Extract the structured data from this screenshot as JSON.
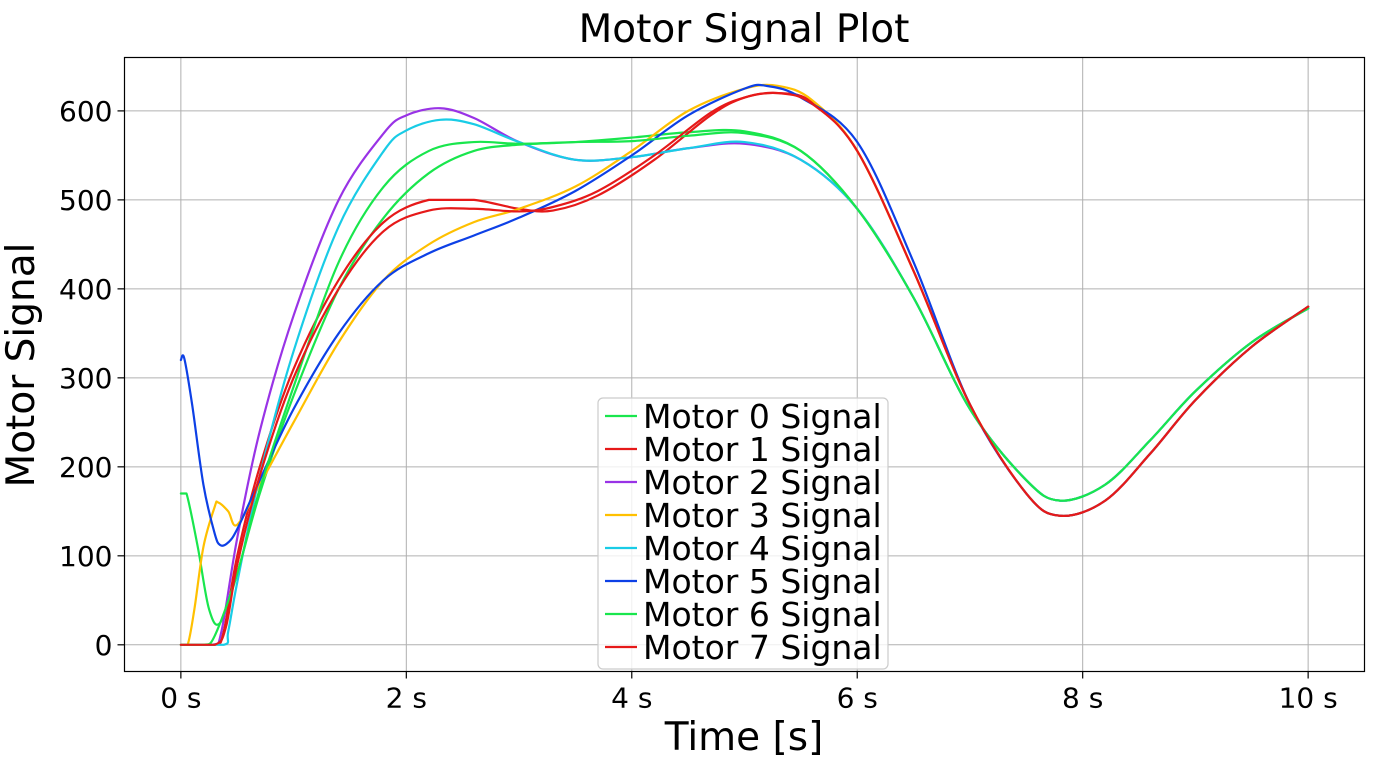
{
  "chart_data": {
    "type": "line",
    "title": "Motor Signal Plot",
    "xlabel": "Time [s]",
    "ylabel": "Motor Signal",
    "xlim": [
      -0.5,
      10.5
    ],
    "ylim": [
      -30,
      660
    ],
    "xticks": [
      0,
      2,
      4,
      6,
      8,
      10
    ],
    "xtick_labels": [
      "0 s",
      "2 s",
      "4 s",
      "6 s",
      "8 s",
      "10 s"
    ],
    "yticks": [
      0,
      100,
      200,
      300,
      400,
      500,
      600
    ],
    "ytick_labels": [
      "0",
      "100",
      "200",
      "300",
      "400",
      "500",
      "600"
    ],
    "grid": true,
    "legend_position": "lower-center",
    "series": [
      {
        "name": "Motor 0 Signal",
        "color": "#19e64d",
        "x": [
          0,
          0.05,
          0.15,
          0.25,
          0.35,
          0.5,
          0.7,
          1.0,
          1.4,
          1.8,
          2.2,
          2.6,
          3.0,
          3.5,
          4.0,
          4.5,
          5.0,
          5.5,
          6.0,
          6.5,
          7.0,
          7.5,
          7.8,
          8.2,
          8.6,
          9.0,
          9.5,
          10.0
        ],
        "y": [
          170,
          170,
          110,
          40,
          25,
          80,
          170,
          280,
          400,
          480,
          530,
          555,
          562,
          565,
          570,
          576,
          577,
          555,
          490,
          390,
          265,
          185,
          162,
          180,
          230,
          285,
          340,
          378
        ]
      },
      {
        "name": "Motor 1 Signal",
        "color": "#e61919",
        "x": [
          0,
          0.3,
          0.38,
          0.5,
          0.7,
          1.0,
          1.4,
          1.8,
          2.2,
          2.6,
          3.0,
          3.3,
          3.7,
          4.2,
          4.7,
          5.0,
          5.3,
          5.6,
          6.0,
          6.5,
          7.0,
          7.5,
          7.8,
          8.2,
          8.6,
          9.0,
          9.5,
          10.0
        ],
        "y": [
          0,
          0,
          15,
          100,
          200,
          310,
          410,
          475,
          500,
          500,
          490,
          488,
          505,
          545,
          595,
          615,
          620,
          610,
          555,
          420,
          270,
          170,
          145,
          162,
          215,
          275,
          335,
          380
        ]
      },
      {
        "name": "Motor 2 Signal",
        "color": "#9933e6",
        "x": [
          0,
          0.28,
          0.36,
          0.5,
          0.7,
          1.0,
          1.4,
          1.8,
          2.0,
          2.3,
          2.6,
          3.0,
          3.5,
          4.0,
          4.5,
          5.0,
          5.5,
          6.0,
          6.5,
          7.0,
          7.5,
          7.8,
          8.2,
          8.6,
          9.0,
          9.5,
          10.0
        ],
        "y": [
          0,
          0,
          15,
          120,
          240,
          370,
          500,
          575,
          595,
          603,
          592,
          565,
          545,
          548,
          558,
          563,
          545,
          490,
          390,
          265,
          185,
          162,
          180,
          230,
          285,
          340,
          378
        ]
      },
      {
        "name": "Motor 3 Signal",
        "color": "#ffc000",
        "x": [
          0,
          0.06,
          0.12,
          0.2,
          0.3,
          0.33,
          0.42,
          0.5,
          0.7,
          1.0,
          1.4,
          1.8,
          2.2,
          2.6,
          3.0,
          3.5,
          4.0,
          4.5,
          5.0,
          5.3,
          5.6,
          6.0,
          6.5,
          7.0,
          7.5,
          7.8,
          8.2,
          8.6,
          9.0,
          9.5,
          10.0
        ],
        "y": [
          0,
          0,
          40,
          110,
          155,
          160,
          150,
          135,
          180,
          250,
          340,
          410,
          450,
          475,
          490,
          515,
          555,
          600,
          625,
          628,
          612,
          555,
          420,
          270,
          170,
          145,
          162,
          215,
          275,
          335,
          380
        ]
      },
      {
        "name": "Motor 4 Signal",
        "color": "#19cce6",
        "x": [
          0,
          0.38,
          0.42,
          0.5,
          0.7,
          1.0,
          1.4,
          1.8,
          2.0,
          2.3,
          2.6,
          3.0,
          3.5,
          4.0,
          4.5,
          5.0,
          5.5,
          6.0,
          6.5,
          7.0,
          7.5,
          7.8,
          8.2,
          8.6,
          9.0,
          9.5,
          10.0
        ],
        "y": [
          0,
          0,
          15,
          70,
          190,
          330,
          470,
          555,
          578,
          590,
          585,
          565,
          545,
          548,
          558,
          565,
          545,
          490,
          390,
          265,
          185,
          162,
          180,
          230,
          285,
          340,
          378
        ]
      },
      {
        "name": "Motor 5 Signal",
        "color": "#0d40e6",
        "x": [
          0,
          0.03,
          0.1,
          0.2,
          0.3,
          0.35,
          0.42,
          0.5,
          0.7,
          1.0,
          1.4,
          1.8,
          2.2,
          2.6,
          3.0,
          3.5,
          4.0,
          4.5,
          5.0,
          5.2,
          5.5,
          6.0,
          6.5,
          7.0,
          7.5,
          7.8,
          8.2,
          8.6,
          9.0,
          9.5,
          10.0
        ],
        "y": [
          320,
          322,
          270,
          180,
          125,
          112,
          115,
          130,
          185,
          265,
          350,
          410,
          440,
          460,
          480,
          510,
          550,
          595,
          625,
          628,
          615,
          565,
          430,
          270,
          170,
          145,
          162,
          215,
          275,
          335,
          380
        ]
      },
      {
        "name": "Motor 6 Signal",
        "color": "#19e64d",
        "x": [
          0,
          0.2,
          0.3,
          0.5,
          0.7,
          1.0,
          1.4,
          1.8,
          2.2,
          2.6,
          3.0,
          3.5,
          4.0,
          4.5,
          5.0,
          5.5,
          6.0,
          6.5,
          7.0,
          7.5,
          7.8,
          8.2,
          8.6,
          9.0,
          9.5,
          10.0
        ],
        "y": [
          0,
          0,
          10,
          80,
          175,
          290,
          430,
          515,
          555,
          565,
          563,
          565,
          566,
          572,
          575,
          555,
          490,
          390,
          265,
          185,
          162,
          180,
          230,
          285,
          340,
          378
        ]
      },
      {
        "name": "Motor 7 Signal",
        "color": "#e61919",
        "x": [
          0,
          0.3,
          0.4,
          0.5,
          0.7,
          1.0,
          1.4,
          1.8,
          2.2,
          2.6,
          3.0,
          3.3,
          3.7,
          4.2,
          4.7,
          5.0,
          5.3,
          5.6,
          6.0,
          6.5,
          7.0,
          7.5,
          7.8,
          8.2,
          8.6,
          9.0,
          9.5,
          10.0
        ],
        "y": [
          0,
          0,
          20,
          90,
          190,
          300,
          400,
          465,
          488,
          490,
          487,
          492,
          510,
          550,
          598,
          615,
          620,
          608,
          555,
          420,
          270,
          170,
          145,
          162,
          215,
          275,
          335,
          380
        ]
      }
    ]
  }
}
